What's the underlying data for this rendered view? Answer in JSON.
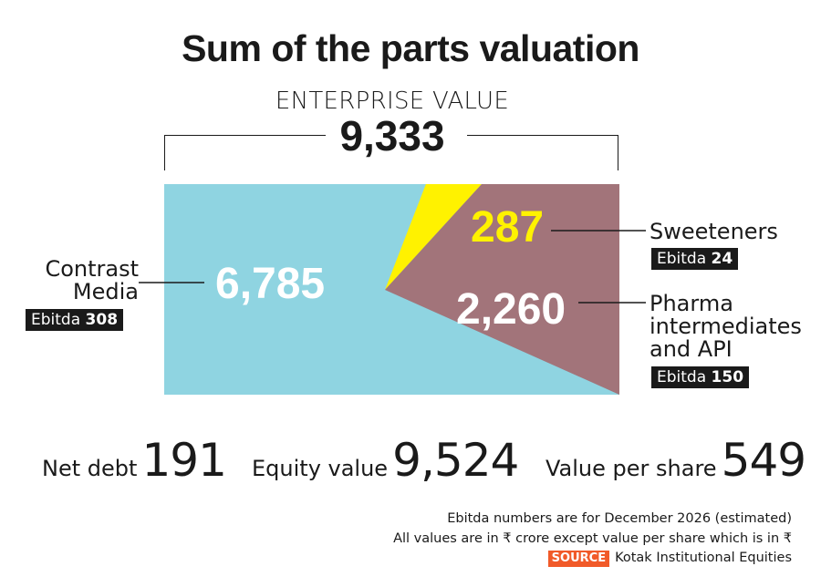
{
  "title": "Sum of the parts valuation",
  "enterprise": {
    "label": "ENTERPRISE VALUE",
    "value": "9,333"
  },
  "chart_data": {
    "type": "area",
    "title": "Sum of the parts valuation",
    "total": 9333,
    "segments": [
      {
        "name": "Contrast Media",
        "value": 6785,
        "value_label": "6,785",
        "ebitda_label": "Ebitda",
        "ebitda_value": "308",
        "color": "#8fd4e1",
        "text_color": "#ffffff"
      },
      {
        "name": "Sweeteners",
        "value": 287,
        "value_label": "287",
        "ebitda_label": "Ebitda",
        "ebitda_value": "24",
        "color": "#fff200",
        "text_color": "#fff200"
      },
      {
        "name": "Pharma intermediates and API",
        "value": 2260,
        "value_label": "2,260",
        "ebitda_label": "Ebitda",
        "ebitda_value": "150",
        "color": "#a2747a",
        "text_color": "#ffffff"
      }
    ]
  },
  "callouts": {
    "contrast_line1": "Contrast",
    "contrast_line2": "Media",
    "sweeteners": "Sweeteners",
    "pharma_line1": "Pharma",
    "pharma_line2": "intermediates",
    "pharma_line3": "and API"
  },
  "stats": [
    {
      "label": "Net debt",
      "value": "191"
    },
    {
      "label": "Equity value",
      "value": "9,524"
    },
    {
      "label": "Value per share",
      "value": "549"
    }
  ],
  "notes": {
    "line1": "Ebitda numbers are for December 2026 (estimated)",
    "line2": "All values are in ₹ crore except value per share which is in ₹",
    "source_tag": "SOURCE",
    "source": "Kotak Institutional Equities"
  }
}
